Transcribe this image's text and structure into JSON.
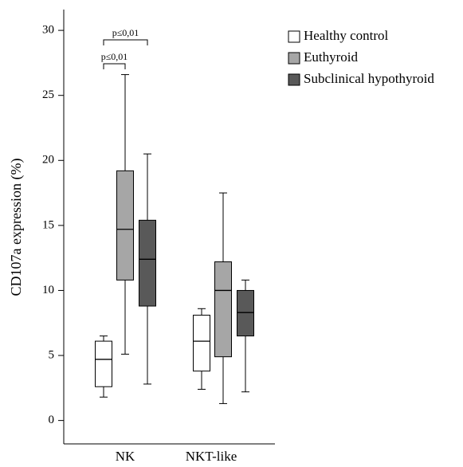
{
  "chart_data": {
    "type": "box",
    "y_label": "CD107a expression (%)",
    "categories": [
      "NK",
      "NKT-like"
    ],
    "series": [
      {
        "name": "Healthy control",
        "color": "#ffffff",
        "values": [
          {
            "min": 1.8,
            "q1": 2.6,
            "median": 4.7,
            "q3": 6.1,
            "max": 6.5
          },
          {
            "min": 2.4,
            "q1": 3.8,
            "median": 6.1,
            "q3": 8.1,
            "max": 8.6
          }
        ]
      },
      {
        "name": "Euthyroid",
        "color": "#a6a6a6",
        "values": [
          {
            "min": 5.1,
            "q1": 10.8,
            "median": 14.7,
            "q3": 19.2,
            "max": 26.6
          },
          {
            "min": 1.3,
            "q1": 4.9,
            "median": 10.0,
            "q3": 12.2,
            "max": 17.5
          }
        ]
      },
      {
        "name": "Subclinical hypothyroid",
        "color": "#595959",
        "values": [
          {
            "min": 2.8,
            "q1": 8.8,
            "median": 12.4,
            "q3": 15.4,
            "max": 20.5
          },
          {
            "min": 2.2,
            "q1": 6.5,
            "median": 8.3,
            "q3": 10.0,
            "max": 10.8
          }
        ]
      }
    ],
    "annotations": [
      "p≤0,01",
      "p≤0,01"
    ],
    "ylim": [
      -1.8,
      31.6
    ],
    "yticks": [
      0,
      5,
      10,
      15,
      20,
      25,
      30
    ],
    "legend": "top-right"
  }
}
